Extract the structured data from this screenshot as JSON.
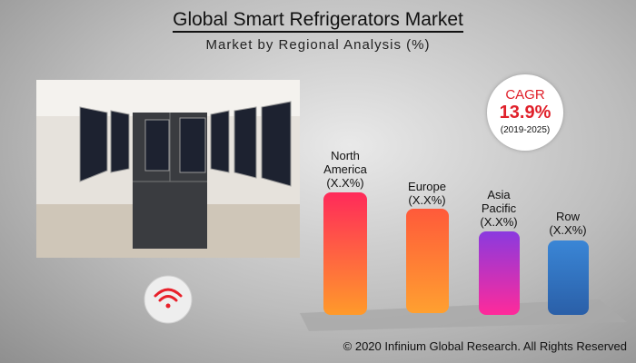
{
  "header": {
    "title": "Global Smart Refrigerators Market",
    "subtitle": "Market by Regional Analysis (%)"
  },
  "cagr": {
    "label": "CAGR",
    "value": "13.9%",
    "period": "(2019-2025)"
  },
  "regions": [
    {
      "name": "North America",
      "share": "(X.X%)"
    },
    {
      "name": "Europe",
      "share": "(X.X%)"
    },
    {
      "name": "Asia Pacific",
      "share": "(X.X%)"
    },
    {
      "name": "Row",
      "share": "(X.X%)"
    }
  ],
  "footer": "© 2020 Infinium Global Research. All Rights Reserved"
}
